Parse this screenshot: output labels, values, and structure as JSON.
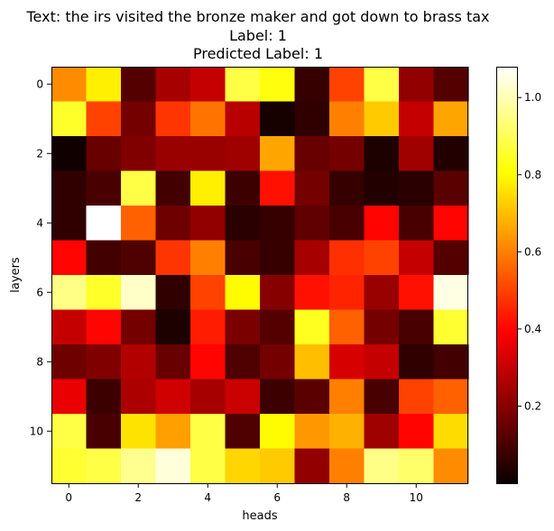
{
  "chart_data": {
    "type": "heatmap",
    "title_lines": [
      "Text: the irs visited the bronze maker and got down to brass tax",
      "Label: 1",
      "Predicted Label: 1"
    ],
    "xlabel": "heads",
    "ylabel": "layers",
    "x_ticks": [
      0,
      2,
      4,
      6,
      8,
      10
    ],
    "y_ticks": [
      0,
      2,
      4,
      6,
      8,
      10
    ],
    "n_rows": 12,
    "n_cols": 12,
    "colormap": "hot",
    "vmin": 0.0,
    "vmax": 1.08,
    "colorbar_ticks": [
      "0.2",
      "0.4",
      "0.6",
      "0.8",
      "1.0"
    ],
    "colorbar_tick_values": [
      0.2,
      0.4,
      0.6,
      0.8,
      1.0
    ],
    "values": [
      [
        0.62,
        0.78,
        0.12,
        0.25,
        0.3,
        0.88,
        0.82,
        0.07,
        0.5,
        0.88,
        0.22,
        0.12
      ],
      [
        0.85,
        0.5,
        0.17,
        0.48,
        0.58,
        0.28,
        0.02,
        0.06,
        0.6,
        0.72,
        0.3,
        0.66
      ],
      [
        0.01,
        0.15,
        0.19,
        0.23,
        0.23,
        0.24,
        0.66,
        0.15,
        0.17,
        0.03,
        0.24,
        0.04
      ],
      [
        0.06,
        0.1,
        0.88,
        0.09,
        0.78,
        0.08,
        0.42,
        0.17,
        0.07,
        0.04,
        0.05,
        0.13
      ],
      [
        0.06,
        1.08,
        0.55,
        0.16,
        0.22,
        0.05,
        0.07,
        0.14,
        0.1,
        0.4,
        0.1,
        0.4
      ],
      [
        0.4,
        0.09,
        0.11,
        0.48,
        0.6,
        0.1,
        0.07,
        0.25,
        0.47,
        0.5,
        0.3,
        0.12
      ],
      [
        0.95,
        0.85,
        1.02,
        0.06,
        0.5,
        0.8,
        0.2,
        0.42,
        0.45,
        0.23,
        0.42,
        1.05
      ],
      [
        0.3,
        0.4,
        0.17,
        0.03,
        0.44,
        0.18,
        0.12,
        0.84,
        0.55,
        0.17,
        0.1,
        0.86
      ],
      [
        0.16,
        0.19,
        0.27,
        0.15,
        0.4,
        0.11,
        0.17,
        0.7,
        0.33,
        0.3,
        0.06,
        0.09
      ],
      [
        0.36,
        0.08,
        0.26,
        0.32,
        0.25,
        0.31,
        0.08,
        0.13,
        0.6,
        0.1,
        0.5,
        0.55
      ],
      [
        0.88,
        0.1,
        0.76,
        0.65,
        0.88,
        0.11,
        0.8,
        0.64,
        0.68,
        0.24,
        0.4,
        0.75
      ],
      [
        0.86,
        0.88,
        0.96,
        1.04,
        0.88,
        0.74,
        0.72,
        0.22,
        0.6,
        0.95,
        0.92,
        0.62
      ]
    ]
  }
}
